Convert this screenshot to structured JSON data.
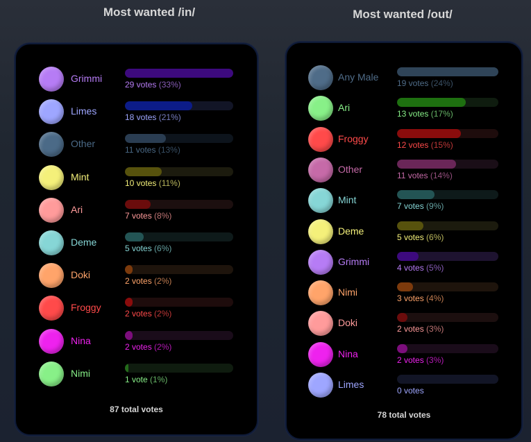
{
  "polls": [
    {
      "title": "Most wanted /in/",
      "total": "87 total votes",
      "options": [
        {
          "name": "Grimmi",
          "count": "29 votes",
          "pct": "(33%)",
          "fraction": 1.0,
          "color": "#b67cf5",
          "bar": "#3d0a7e",
          "track": "#1e1330"
        },
        {
          "name": "Limes",
          "count": "18 votes",
          "pct": "(21%)",
          "fraction": 0.62,
          "color": "#9ea6ff",
          "bar": "#0c1c88",
          "track": "#121526"
        },
        {
          "name": "Other",
          "count": "11 votes",
          "pct": "(13%)",
          "fraction": 0.38,
          "color": "#4b6a87",
          "bar": "#2a3d52",
          "track": "#0d141c"
        },
        {
          "name": "Mint",
          "count": "10 votes",
          "pct": "(11%)",
          "fraction": 0.34,
          "color": "#f4f07a",
          "bar": "#57520d",
          "track": "#1c1b0e"
        },
        {
          "name": "Ari",
          "count": "7 votes",
          "pct": "(8%)",
          "fraction": 0.24,
          "color": "#ff9b9b",
          "bar": "#6b0c0c",
          "track": "#1c0f0f"
        },
        {
          "name": "Deme",
          "count": "5 votes",
          "pct": "(6%)",
          "fraction": 0.17,
          "color": "#86d6d6",
          "bar": "#235454",
          "track": "#0e1a1a"
        },
        {
          "name": "Doki",
          "count": "2 votes",
          "pct": "(2%)",
          "fraction": 0.07,
          "color": "#ffa46a",
          "bar": "#7c3a0c",
          "track": "#1e140c"
        },
        {
          "name": "Froggy",
          "count": "2 votes",
          "pct": "(2%)",
          "fraction": 0.07,
          "color": "#ff4a4a",
          "bar": "#8a0c0c",
          "track": "#1e0c0c"
        },
        {
          "name": "Nina",
          "count": "2 votes",
          "pct": "(2%)",
          "fraction": 0.07,
          "color": "#ee22ee",
          "bar": "#7c0e7c",
          "track": "#1a0c1a"
        },
        {
          "name": "Nimi",
          "count": "1 vote",
          "pct": "(1%)",
          "fraction": 0.035,
          "color": "#88f088",
          "bar": "#236a1a",
          "track": "#0f1c0f"
        }
      ]
    },
    {
      "title": "Most wanted /out/",
      "total": "78 total votes",
      "options": [
        {
          "name": "Any Male",
          "count": "19 votes",
          "pct": "(24%)",
          "fraction": 1.0,
          "color": "#4f6c88",
          "bar": "#2f4458",
          "track": "#0e151c"
        },
        {
          "name": "Ari",
          "count": "13 votes",
          "pct": "(17%)",
          "fraction": 0.68,
          "color": "#88f088",
          "bar": "#1e7010",
          "track": "#0f1c0f"
        },
        {
          "name": "Froggy",
          "count": "12 votes",
          "pct": "(15%)",
          "fraction": 0.63,
          "color": "#ff4a4a",
          "bar": "#8a0c0c",
          "track": "#1e0c0c"
        },
        {
          "name": "Other",
          "count": "11 votes",
          "pct": "(14%)",
          "fraction": 0.58,
          "color": "#c66aa8",
          "bar": "#6a2658",
          "track": "#1a0e17"
        },
        {
          "name": "Mint",
          "count": "7 votes",
          "pct": "(9%)",
          "fraction": 0.37,
          "color": "#86d6d6",
          "bar": "#235454",
          "track": "#0e1a1a"
        },
        {
          "name": "Deme",
          "count": "5 votes",
          "pct": "(6%)",
          "fraction": 0.26,
          "color": "#f4f07a",
          "bar": "#57520d",
          "track": "#1c1b0e"
        },
        {
          "name": "Grimmi",
          "count": "4 votes",
          "pct": "(5%)",
          "fraction": 0.21,
          "color": "#b67cf5",
          "bar": "#3d0a7e",
          "track": "#1e1330"
        },
        {
          "name": "Nimi",
          "count": "3 votes",
          "pct": "(4%)",
          "fraction": 0.16,
          "color": "#ffa46a",
          "bar": "#7c3a0c",
          "track": "#1e140c"
        },
        {
          "name": "Doki",
          "count": "2 votes",
          "pct": "(3%)",
          "fraction": 0.1,
          "color": "#ff9b9b",
          "bar": "#6b0c0c",
          "track": "#1c0f0f"
        },
        {
          "name": "Nina",
          "count": "2 votes",
          "pct": "(3%)",
          "fraction": 0.1,
          "color": "#ee22ee",
          "bar": "#7c0e7c",
          "track": "#1a0c1a"
        },
        {
          "name": "Limes",
          "count": "0 votes",
          "pct": "",
          "fraction": 0,
          "color": "#9ea6ff",
          "bar": "#0c1c88",
          "track": "#121526"
        }
      ]
    }
  ]
}
